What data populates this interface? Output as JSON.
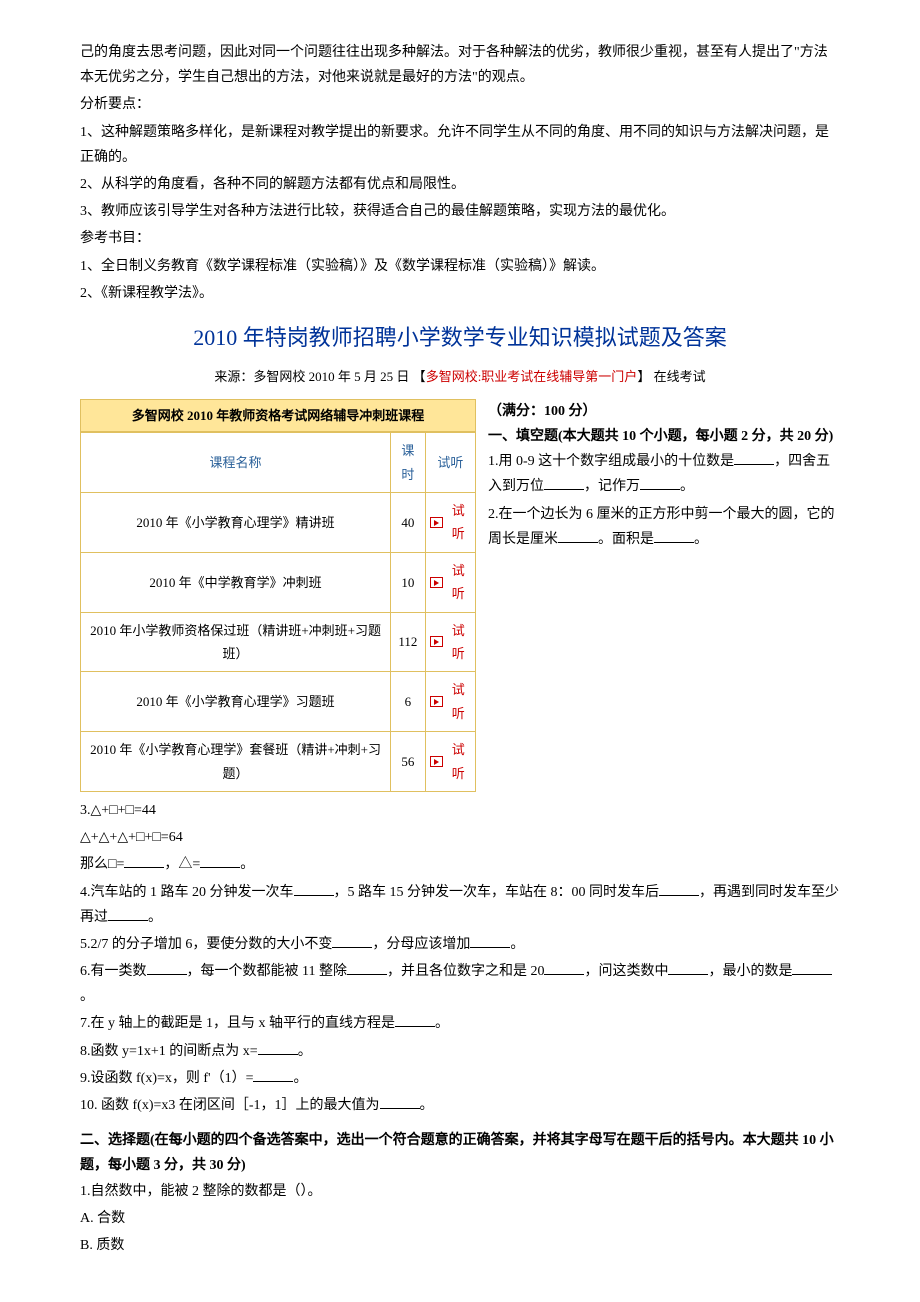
{
  "intro": {
    "p1": "己的角度去思考问题，因此对同一个问题往往出现多种解法。对于各种解法的优劣，教师很少重视，甚至有人提出了\"方法本无优劣之分，学生自己想出的方法，对他来说就是最好的方法\"的观点。",
    "p2": "分析要点：",
    "p3": "1、这种解题策略多样化，是新课程对教学提出的新要求。允许不同学生从不同的角度、用不同的知识与方法解决问题，是正确的。",
    "p4": "2、从科学的角度看，各种不同的解题方法都有优点和局限性。",
    "p5": "3、教师应该引导学生对各种方法进行比较，获得适合自己的最佳解题策略，实现方法的最优化。",
    "p6": "参考书目：",
    "p7": "1、全日制义务教育《数学课程标准（实验稿）》及《数学课程标准（实验稿）》解读。",
    "p8": "2、《新课程教学法》。"
  },
  "title": "2010 年特岗教师招聘小学数学专业知识模拟试题及答案",
  "source": {
    "prefix": "来源：多智网校  2010 年 5 月 25 日   【",
    "link": "多智网校:职业考试在线辅导第一门户",
    "suffix": "】  在线考试"
  },
  "table": {
    "title": "多智网校 2010 年教师资格考试网络辅导冲刺班课程",
    "headers": [
      "课程名称",
      "课时",
      "试听"
    ],
    "rows": [
      {
        "name": "2010 年《小学教育心理学》精讲班",
        "hours": "40",
        "audio": "试听"
      },
      {
        "name": "2010 年《中学教育学》冲刺班",
        "hours": "10",
        "audio": "试听"
      },
      {
        "name": "2010 年小学教师资格保过班（精讲班+冲刺班+习题班）",
        "hours": "112",
        "audio": "试听"
      },
      {
        "name": "2010 年《小学教育心理学》习题班",
        "hours": "6",
        "audio": "试听"
      },
      {
        "name": "2010 年《小学教育心理学》套餐班（精讲+冲刺+习题）",
        "hours": "56",
        "audio": "试听"
      }
    ]
  },
  "right": {
    "full": "（满分：100 分）",
    "section1_title": "一、填空题(本大题共 10 个小题，每小题 2 分，共 20 分)",
    "q1a": "1.用 0-9 这十个数字组成最小的十位数是",
    "q1b": "，四舍五入到万位",
    "q1c": "，记作万",
    "q1d": "。",
    "q2a": "2.在一个边长为 6 厘米的正方形中剪一个最大的圆，它的周长是厘米",
    "q2b": "。面积是",
    "q2c": "。"
  },
  "questions": {
    "q3a": "3.△+□+□=44",
    "q3b": "△+△+△+□+□=64",
    "q3c_1": "那么□=",
    "q3c_2": "，△=",
    "q3c_3": "。",
    "q4_1": "4.汽车站的 1 路车 20 分钟发一次车",
    "q4_2": "，5 路车 15 分钟发一次车，车站在 8：00 同时发车后",
    "q4_3": "，再遇到同时发车至少再过",
    "q4_4": "。",
    "q5_1": "5.2/7 的分子增加 6，要使分数的大小不变",
    "q5_2": "，分母应该增加",
    "q5_3": "。",
    "q6_1": "6.有一类数",
    "q6_2": "，每一个数都能被 11 整除",
    "q6_3": "，并且各位数字之和是 20",
    "q6_4": "，问这类数中",
    "q6_5": "，最小的数是",
    "q6_6": "。",
    "q7_1": "7.在 y 轴上的截距是 1，且与 x 轴平行的直线方程是",
    "q7_2": "。",
    "q8_1": "8.函数 y=1x+1 的间断点为 x=",
    "q8_2": "。",
    "q9_1": "9.设函数 f(x)=x，则 f'（1）=",
    "q9_2": "。",
    "q10_1": "10. 函数 f(x)=x3 在闭区间［-1，1］上的最大值为",
    "q10_2": "。"
  },
  "section2": {
    "title": "二、选择题(在每小题的四个备选答案中，选出一个符合题意的正确答案，并将其字母写在题干后的括号内。本大题共 10 小题，每小题 3 分，共 30 分)",
    "q1": "1.自然数中，能被 2 整除的数都是（）。",
    "optA": "A. 合数",
    "optB": "B. 质数"
  }
}
